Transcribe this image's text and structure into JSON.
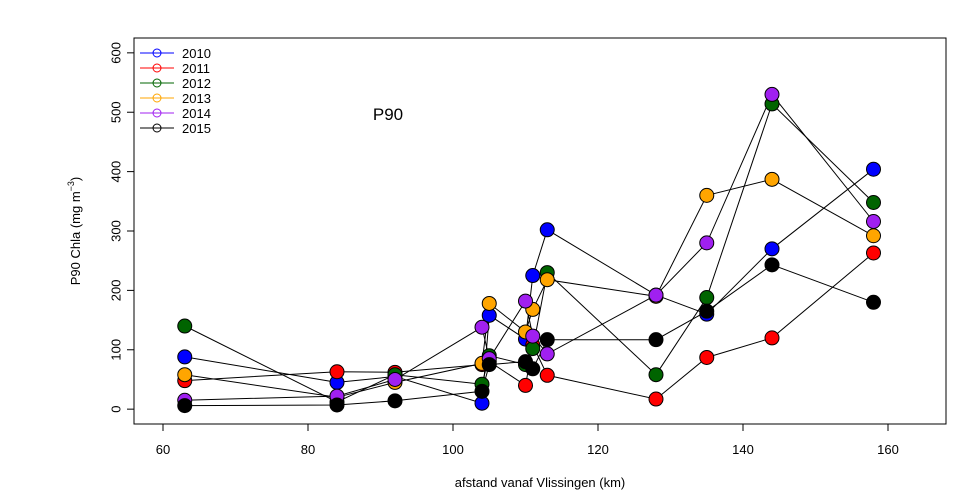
{
  "chart_data": {
    "type": "scatter",
    "title": "",
    "annotation": "P90",
    "xlabel": "afstand vanaf Vlissingen (km)",
    "ylabel_main": "P90 Chla (mg m",
    "ylabel_sup": "−3",
    "ylabel_close": ")",
    "xlim": [
      56,
      168
    ],
    "ylim": [
      -25,
      625
    ],
    "xticks": [
      60,
      80,
      100,
      120,
      140,
      160
    ],
    "yticks": [
      0,
      100,
      200,
      300,
      400,
      500,
      600
    ],
    "grid": false,
    "legend_position": "top-left",
    "x": [
      63,
      84,
      92,
      104,
      105,
      110,
      111,
      113,
      128,
      135,
      144,
      158
    ],
    "series": [
      {
        "name": "2010",
        "color": "#0000ff",
        "values": [
          88,
          45,
          55,
          10,
          158,
          118,
          225,
          302,
          192,
          160,
          270,
          404
        ]
      },
      {
        "name": "2011",
        "color": "#ff0000",
        "values": [
          48,
          63,
          62,
          75,
          80,
          40,
          108,
          57,
          17,
          87,
          120,
          263
        ]
      },
      {
        "name": "2012",
        "color": "#006400",
        "values": [
          140,
          12,
          58,
          42,
          90,
          75,
          102,
          230,
          58,
          188,
          514,
          348
        ]
      },
      {
        "name": "2013",
        "color": "#ffa500",
        "values": [
          58,
          20,
          45,
          77,
          178,
          130,
          168,
          218,
          190,
          360,
          387,
          292
        ]
      },
      {
        "name": "2014",
        "color": "#a020f0",
        "values": [
          15,
          22,
          50,
          138,
          85,
          182,
          123,
          93,
          192,
          280,
          530,
          316
        ]
      },
      {
        "name": "2015",
        "color": "#000000",
        "values": [
          6,
          7,
          14,
          30,
          75,
          80,
          68,
          117,
          117,
          165,
          243,
          180
        ]
      }
    ]
  }
}
